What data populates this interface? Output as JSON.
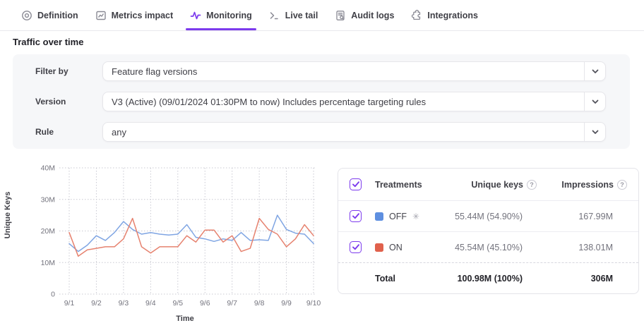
{
  "tabs": [
    {
      "label": "Definition",
      "icon": "target-icon",
      "active": false
    },
    {
      "label": "Metrics impact",
      "icon": "metrics-chart-icon",
      "active": false
    },
    {
      "label": "Monitoring",
      "icon": "pulse-icon",
      "active": true
    },
    {
      "label": "Live tail",
      "icon": "terminal-icon",
      "active": false
    },
    {
      "label": "Audit logs",
      "icon": "document-search-icon",
      "active": false
    },
    {
      "label": "Integrations",
      "icon": "puzzle-icon",
      "active": false
    }
  ],
  "section_title": "Traffic over time",
  "filters": {
    "rows": [
      {
        "label": "Filter by",
        "value": "Feature flag versions"
      },
      {
        "label": "Version",
        "value": "V3 (Active) (09/01/2024 01:30PM to now) Includes percentage targeting rules"
      },
      {
        "label": "Rule",
        "value": "any"
      }
    ]
  },
  "chart_data": {
    "type": "line",
    "xlabel": "Time",
    "ylabel": "Unique Keys",
    "x_tick_labels": [
      "9/1",
      "9/2",
      "9/3",
      "9/4",
      "9/5",
      "9/6",
      "9/7",
      "9/8",
      "9/9",
      "9/10"
    ],
    "y_ticks": [
      0,
      10,
      20,
      30,
      40
    ],
    "y_unit": "M",
    "ylim": [
      0,
      40
    ],
    "points_per_day_interval": 3,
    "grid": "dotted",
    "legend_position": "table-right",
    "series": [
      {
        "name": "OFF",
        "color": "#7fa5e3",
        "values_millions": [
          16,
          13.5,
          15.5,
          18.5,
          17,
          19.5,
          23,
          20.5,
          19,
          19.5,
          19,
          18.7,
          19,
          22,
          18,
          17.5,
          16.7,
          17.5,
          17,
          19.5,
          17,
          17.2,
          17,
          25,
          20.5,
          19.3,
          19,
          16
        ]
      },
      {
        "name": "ON",
        "color": "#e6826f",
        "values_millions": [
          19.5,
          12,
          14,
          14.5,
          15,
          15,
          17.5,
          24,
          15,
          13,
          15,
          15,
          15,
          18.5,
          16.5,
          20.3,
          20.3,
          16.5,
          18.5,
          13.5,
          14.5,
          24,
          20.5,
          19,
          15,
          17.5,
          22,
          18.5
        ]
      }
    ]
  },
  "treatments_table": {
    "header": {
      "treatments": "Treatments",
      "unique_keys": "Unique keys",
      "impressions": "Impressions"
    },
    "rows": [
      {
        "name": "OFF",
        "color": "#5e8fe0",
        "default_marker": "✳",
        "unique_keys": "55.44M (54.90%)",
        "impressions": "167.99M",
        "checked": true
      },
      {
        "name": "ON",
        "color": "#e0614c",
        "default_marker": "",
        "unique_keys": "45.54M (45.10%)",
        "impressions": "138.01M",
        "checked": true
      }
    ],
    "total": {
      "label": "Total",
      "unique_keys": "100.98M (100%)",
      "impressions": "306M"
    },
    "help_icon_glyph": "?",
    "checkbox_color": "#7c3aed"
  },
  "accent_color": "#7c3aed"
}
